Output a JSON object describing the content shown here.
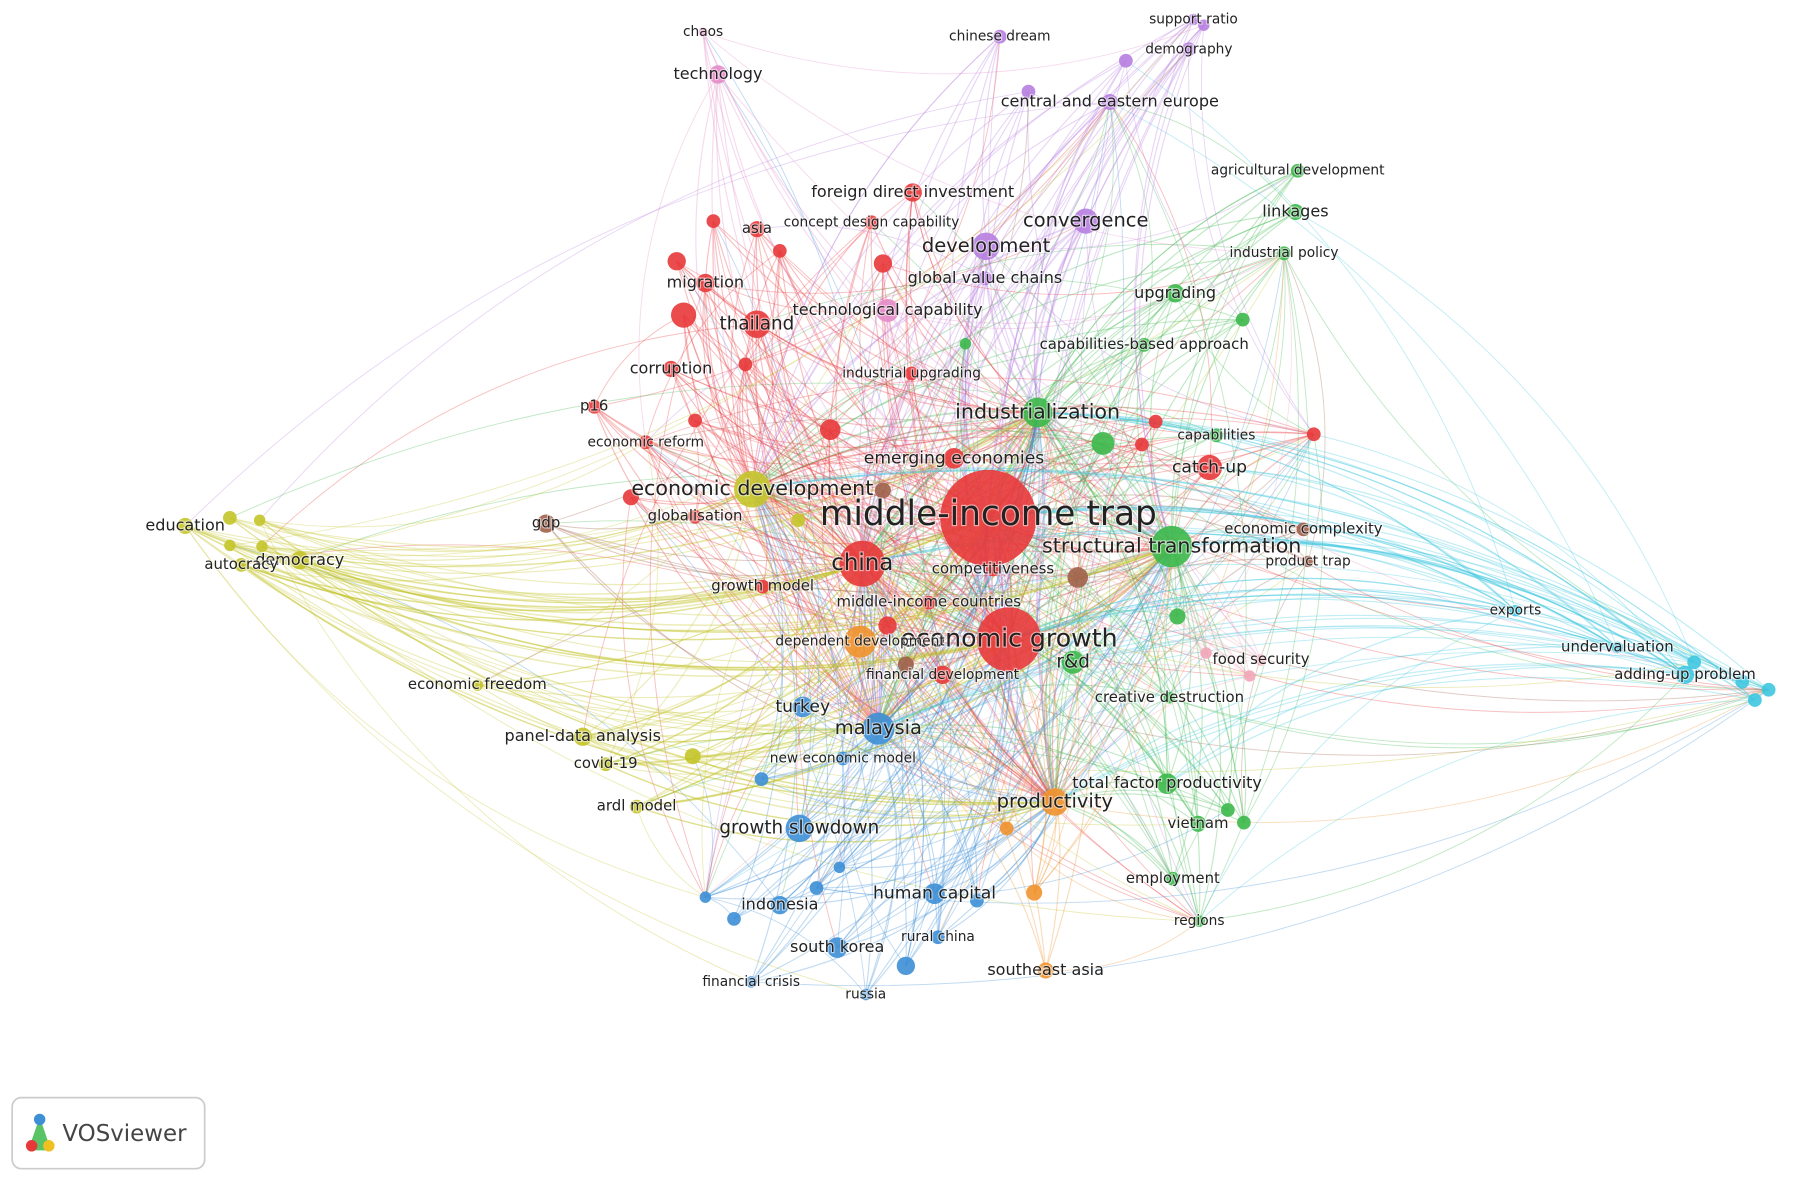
{
  "nodes": [
    {
      "label": "middle-income trap"
    },
    {
      "label": "china"
    },
    {
      "label": "economic growth"
    },
    {
      "label": "structural transformation"
    },
    {
      "label": "economic development"
    },
    {
      "label": "industrialization"
    },
    {
      "label": "development"
    },
    {
      "label": "convergence"
    },
    {
      "label": "productivity"
    },
    {
      "label": "malaysia"
    },
    {
      "label": "growth slowdown"
    },
    {
      "label": "turkey"
    },
    {
      "label": "human capital"
    },
    {
      "label": "thailand"
    },
    {
      "label": "catch-up"
    },
    {
      "label": "r&d"
    },
    {
      "label": "emerging economies"
    },
    {
      "label": "competitiveness"
    },
    {
      "label": "middle-income countries"
    },
    {
      "label": "dependent development"
    },
    {
      "label": "financial development"
    },
    {
      "label": "globalisation"
    },
    {
      "label": "growth model"
    },
    {
      "label": "gdp"
    },
    {
      "label": "democracy"
    },
    {
      "label": "education"
    },
    {
      "label": "autocracy"
    },
    {
      "label": "economic freedom"
    },
    {
      "label": "panel-data analysis"
    },
    {
      "label": "covid-19"
    },
    {
      "label": "ardl model"
    },
    {
      "label": "economic reform"
    },
    {
      "label": "p16"
    },
    {
      "label": "corruption"
    },
    {
      "label": "migration"
    },
    {
      "label": "asia"
    },
    {
      "label": "foreign direct investment"
    },
    {
      "label": "concept design capability"
    },
    {
      "label": "global value chains"
    },
    {
      "label": "technological capability"
    },
    {
      "label": "industrial upgrading"
    },
    {
      "label": "capabilities-based approach"
    },
    {
      "label": "upgrading"
    },
    {
      "label": "linkages"
    },
    {
      "label": "industrial policy"
    },
    {
      "label": "agricultural development"
    },
    {
      "label": "capabilities"
    },
    {
      "label": "economic complexity"
    },
    {
      "label": "product trap"
    },
    {
      "label": "exports"
    },
    {
      "label": "undervaluation"
    },
    {
      "label": "adding-up problem"
    },
    {
      "label": "food security"
    },
    {
      "label": "creative destruction"
    },
    {
      "label": "total factor productivity"
    },
    {
      "label": "vietnam"
    },
    {
      "label": "employment"
    },
    {
      "label": "regions"
    },
    {
      "label": "southeast asia"
    },
    {
      "label": "rural china"
    },
    {
      "label": "south korea"
    },
    {
      "label": "russia"
    },
    {
      "label": "financial crisis"
    },
    {
      "label": "indonesia"
    },
    {
      "label": "new economic model"
    },
    {
      "label": "technology"
    },
    {
      "label": "chaos"
    },
    {
      "label": "chinese dream"
    },
    {
      "label": "support ratio"
    },
    {
      "label": "demography"
    },
    {
      "label": "central and eastern europe"
    }
  ],
  "logo": {
    "text": "VOSviewer"
  }
}
